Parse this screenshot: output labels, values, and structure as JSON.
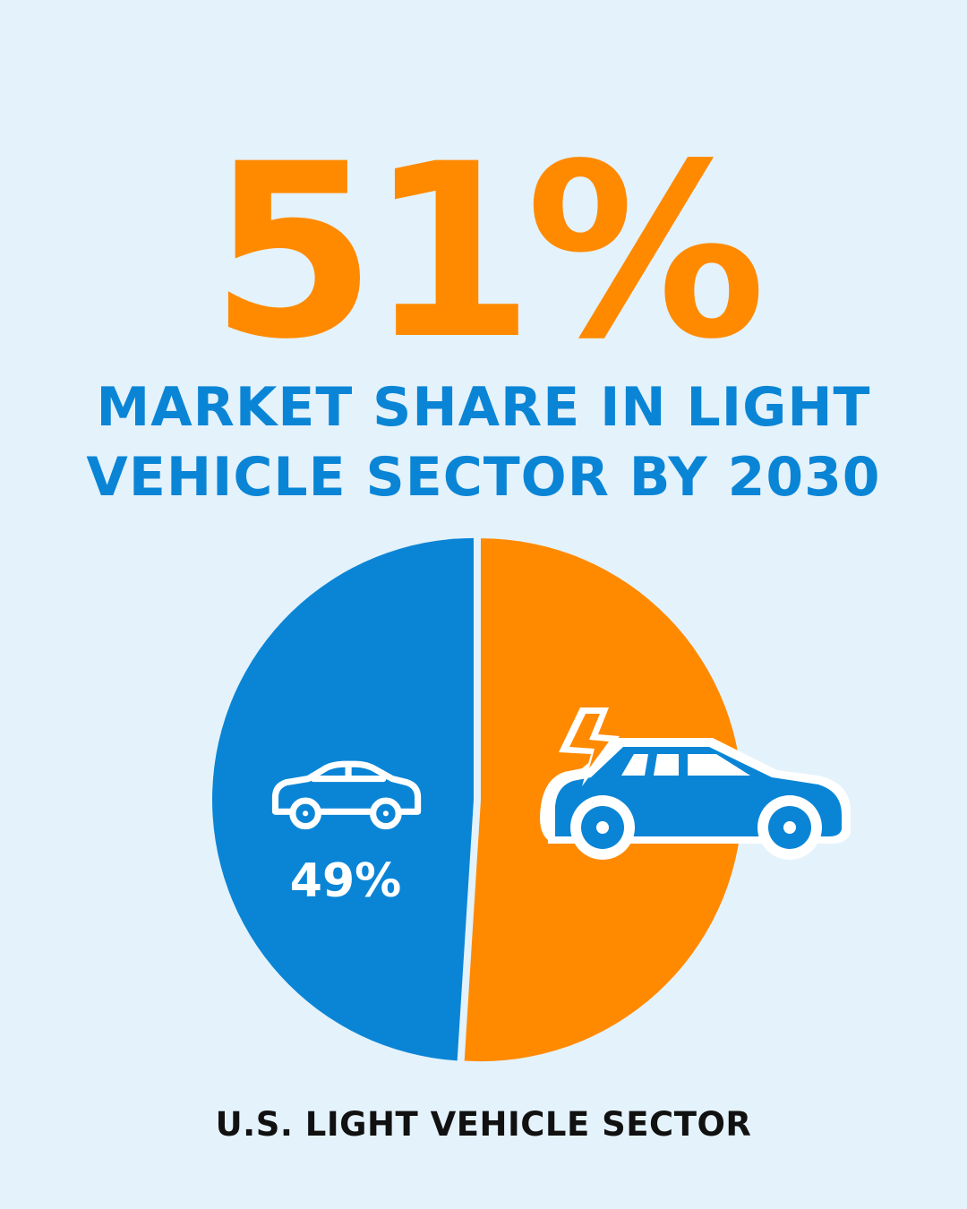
{
  "headline": {
    "stat": "51%",
    "line1": "MARKET SHARE IN LIGHT",
    "line2": "VEHICLE SECTOR BY 2030"
  },
  "chart_data": {
    "type": "pie",
    "title": "U.S. LIGHT VEHICLE SECTOR",
    "slices": [
      {
        "value": 49,
        "label": "49%",
        "color": "#0a85d6",
        "icon": "car-icon"
      },
      {
        "value": 51,
        "label": "",
        "color": "#ff8a00",
        "icon": "electric-car-icon"
      }
    ]
  },
  "colors": {
    "background": "#e4f2fb",
    "accent_orange": "#ff8a00",
    "accent_blue": "#0a85d6",
    "footer_text": "#111111"
  }
}
